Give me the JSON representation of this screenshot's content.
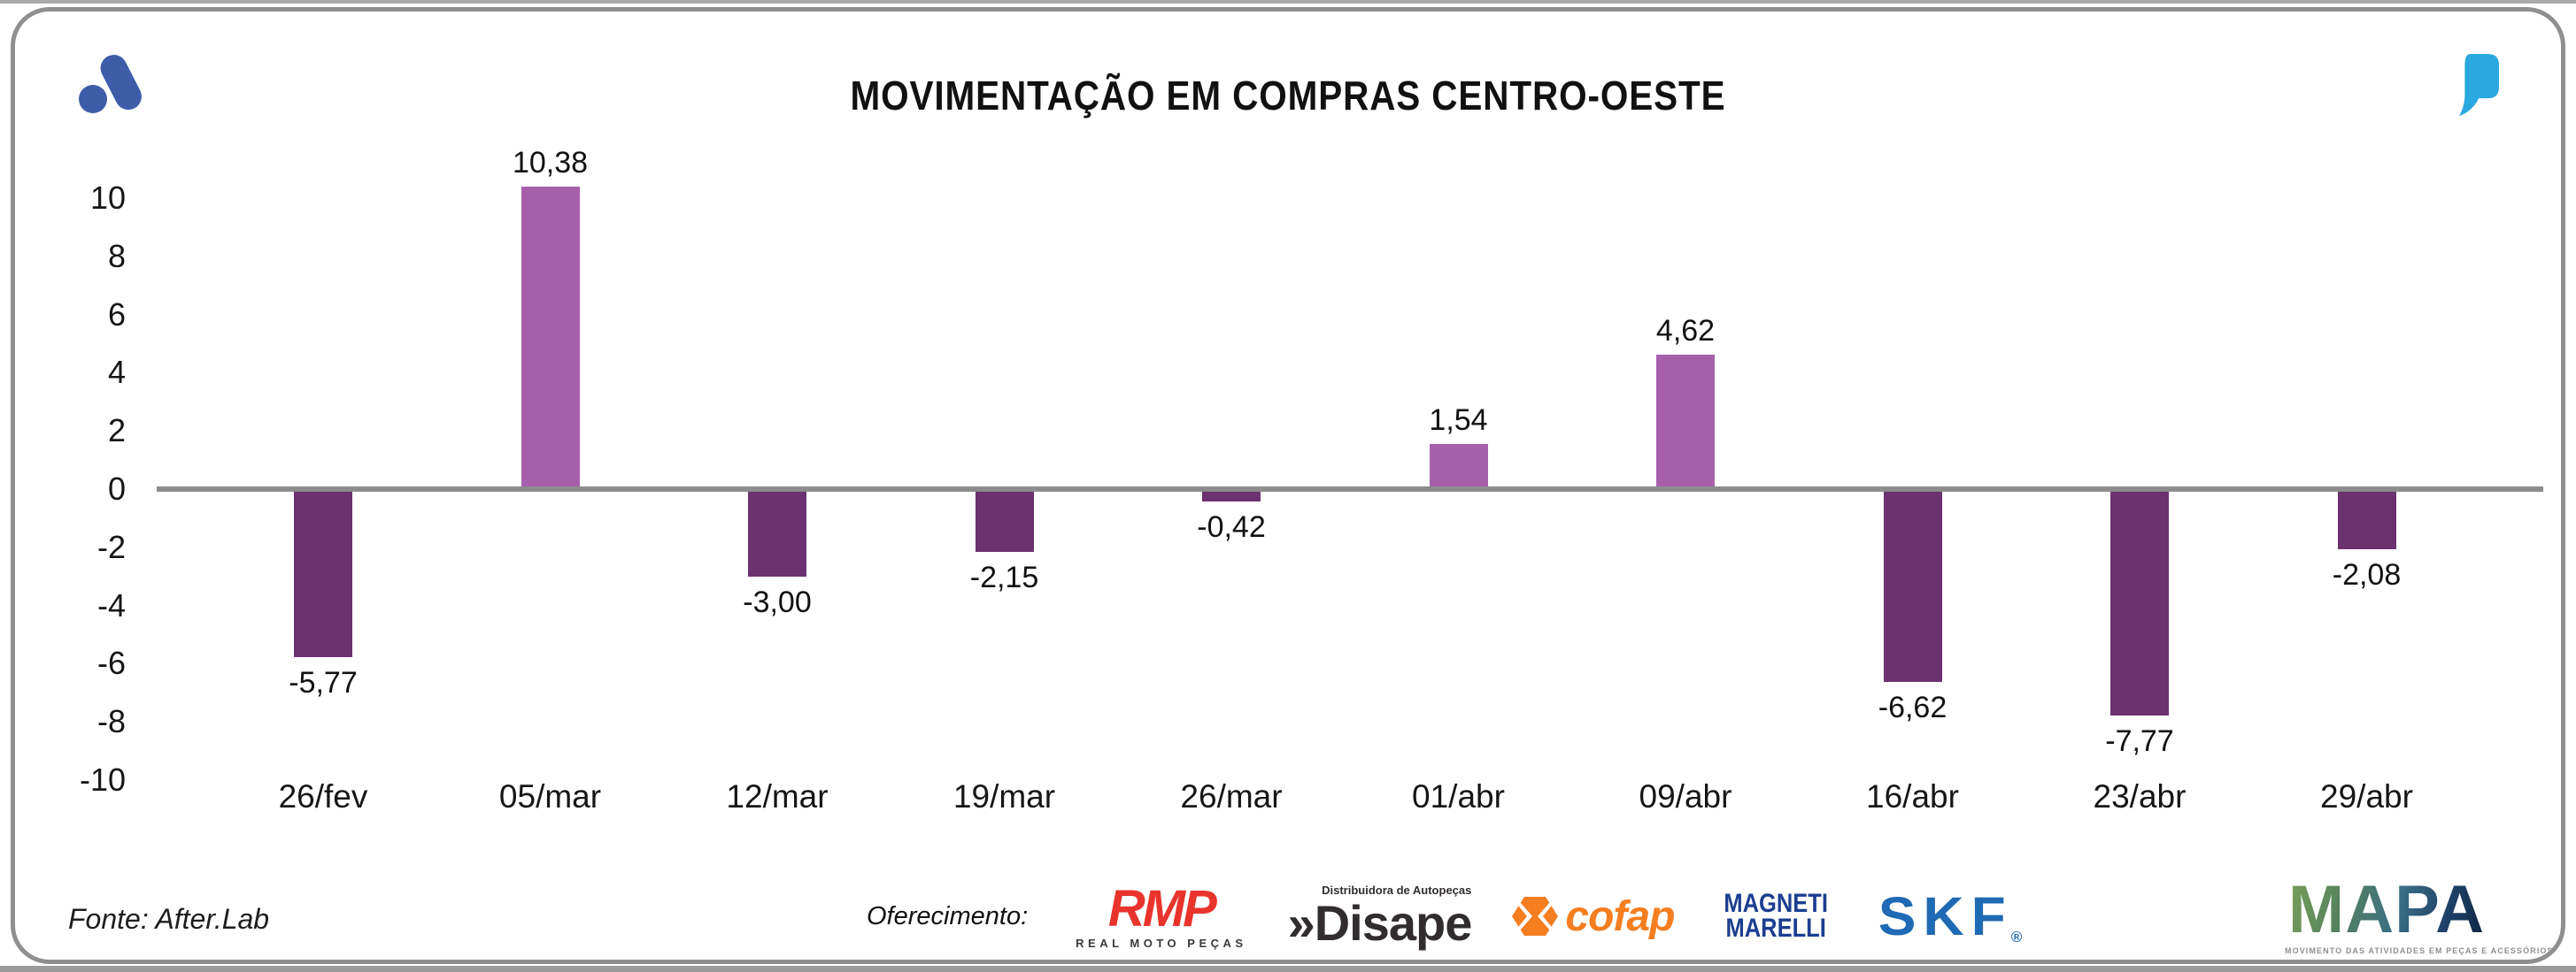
{
  "header": {
    "title": "MOVIMENTAÇÃO EM COMPRAS CENTRO-OESTE"
  },
  "icons": {
    "brand_logo_color": "#3d5da9",
    "quote_icon_color": "#2aa9e0"
  },
  "chart_data": {
    "type": "bar",
    "title": "MOVIMENTAÇÃO EM COMPRAS CENTRO-OESTE",
    "categories": [
      "26/fev",
      "05/mar",
      "12/mar",
      "19/mar",
      "26/mar",
      "01/abr",
      "09/abr",
      "16/abr",
      "23/abr",
      "29/abr"
    ],
    "values": [
      -5.77,
      10.38,
      -3.0,
      -2.15,
      -0.42,
      1.54,
      4.62,
      -6.62,
      -7.77,
      -2.08
    ],
    "value_labels": [
      "-5,77",
      "10,38",
      "-3,00",
      "-2,15",
      "-0,42",
      "1,54",
      "4,62",
      "-6,62",
      "-7,77",
      "-2,08"
    ],
    "xlabel": "",
    "ylabel": "",
    "ylim": [
      -10,
      10
    ],
    "yticks": [
      10,
      8,
      6,
      4,
      2,
      0,
      -2,
      -4,
      -6,
      -8,
      -10
    ],
    "grid": false,
    "legend": "none",
    "positive_color": "#a75fac",
    "negative_color": "#6c3270",
    "baseline_color": "#8c8c8c"
  },
  "footer": {
    "source": "Fonte: After.Lab",
    "sponsor_label": "Oferecimento:",
    "sponsors": {
      "rmp": {
        "name": "RMP",
        "subtitle": "REAL MOTO PEÇAS"
      },
      "disape": {
        "prefix": "»",
        "name": "Disape",
        "tagline": "Distribuidora de Autopeças"
      },
      "cofap": {
        "name": "cofap"
      },
      "magneti_marelli": {
        "line1": "MAGNETI",
        "line2": "MARELLI"
      },
      "skf": {
        "name": "SKF",
        "reg": "®"
      },
      "mapa": {
        "name": "MAPA",
        "tagline": "MOVIMENTO DAS ATIVIDADES EM PEÇAS E ACESSÓRIOS"
      }
    }
  }
}
